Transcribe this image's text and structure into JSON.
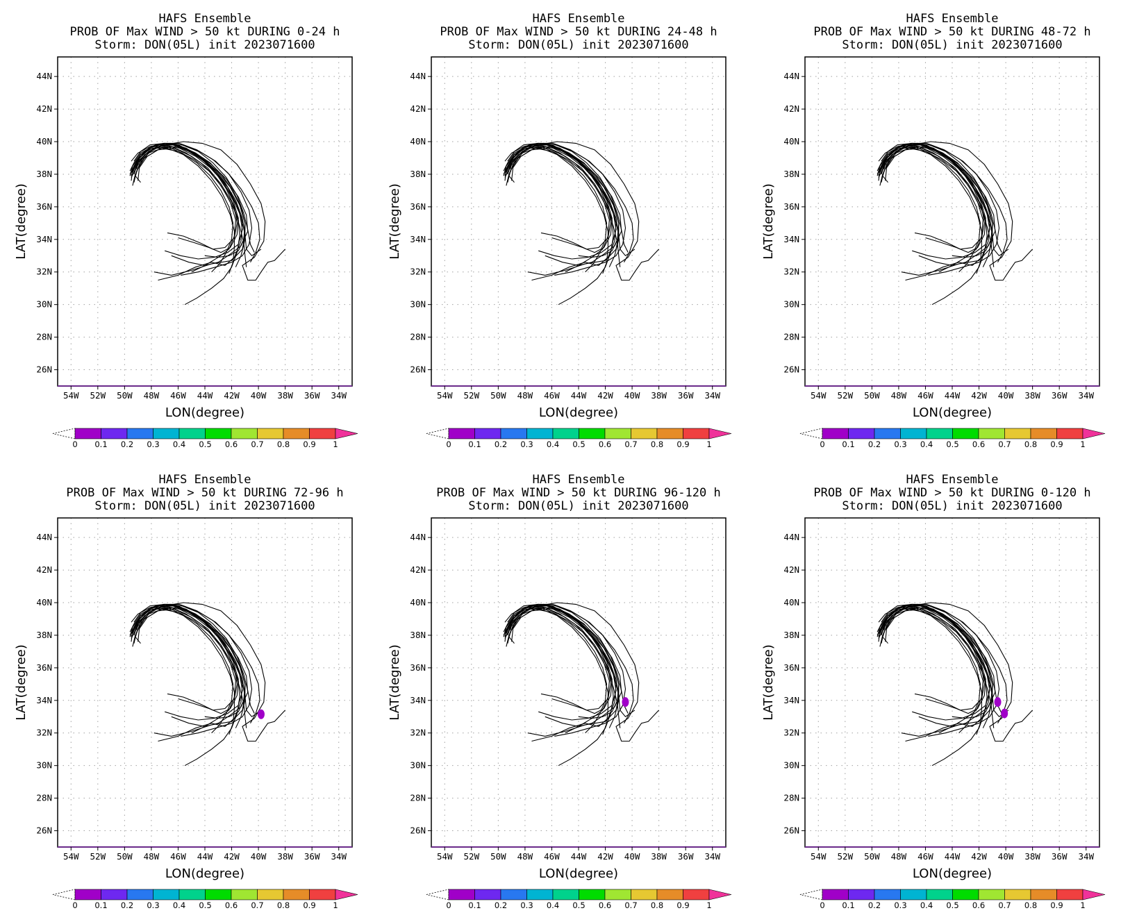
{
  "figure": {
    "line1": "HAFS Ensemble",
    "line3": "Storm: DON(05L) init 2023071600"
  },
  "chart_data": [
    {
      "type": "map",
      "title": "PROB OF Max WIND > 50 kt DURING  0-24 h",
      "prob_regions": []
    },
    {
      "type": "map",
      "title": "PROB OF Max WIND > 50 kt DURING 24-48 h",
      "prob_regions": []
    },
    {
      "type": "map",
      "title": "PROB OF Max WIND > 50 kt DURING 48-72 h",
      "prob_regions": []
    },
    {
      "type": "map",
      "title": "PROB OF Max WIND > 50 kt DURING 72-96 h",
      "prob_regions": [
        {
          "lon": -39.8,
          "lat": 33.15,
          "value": 0.05
        }
      ]
    },
    {
      "type": "map",
      "title": "PROB OF Max WIND > 50 kt DURING 96-120 h",
      "prob_regions": [
        {
          "lon": -40.5,
          "lat": 33.9,
          "value": 0.05
        }
      ]
    },
    {
      "type": "map",
      "title": "PROB OF Max WIND > 50 kt DURING 0-120 h",
      "prob_regions": [
        {
          "lon": -40.6,
          "lat": 33.9,
          "value": 0.05
        },
        {
          "lon": -40.1,
          "lat": 33.2,
          "value": 0.05
        }
      ]
    }
  ],
  "axes": {
    "xlabel": "LON(degree)",
    "ylabel": "LAT(degree)",
    "xlim": [
      -55,
      -33
    ],
    "ylim": [
      25,
      45.2
    ],
    "grid": true,
    "xticks": [
      {
        "v": -54,
        "t": "54W"
      },
      {
        "v": -52,
        "t": "52W"
      },
      {
        "v": -50,
        "t": "50W"
      },
      {
        "v": -48,
        "t": "48W"
      },
      {
        "v": -46,
        "t": "46W"
      },
      {
        "v": -44,
        "t": "44W"
      },
      {
        "v": -42,
        "t": "42W"
      },
      {
        "v": -40,
        "t": "40W"
      },
      {
        "v": -38,
        "t": "38W"
      },
      {
        "v": -36,
        "t": "36W"
      },
      {
        "v": -34,
        "t": "34W"
      }
    ],
    "yticks": [
      {
        "v": 26,
        "t": "26N"
      },
      {
        "v": 28,
        "t": "28N"
      },
      {
        "v": 30,
        "t": "30N"
      },
      {
        "v": 32,
        "t": "32N"
      },
      {
        "v": 34,
        "t": "34N"
      },
      {
        "v": 36,
        "t": "36N"
      },
      {
        "v": 38,
        "t": "38N"
      },
      {
        "v": 40,
        "t": "40N"
      },
      {
        "v": 42,
        "t": "42N"
      },
      {
        "v": 44,
        "t": "44N"
      }
    ]
  },
  "colorbar": {
    "labels": [
      "0",
      "0.1",
      "0.2",
      "0.3",
      "0.4",
      "0.5",
      "0.6",
      "0.7",
      "0.8",
      "0.9",
      "1"
    ],
    "colors": [
      "#a000c8",
      "#6e28f0",
      "#2878f0",
      "#00b4d2",
      "#00d28c",
      "#00dc00",
      "#a0e632",
      "#e6c832",
      "#e68c28",
      "#f04040"
    ],
    "under_color": "#ffffff",
    "over_color": "#f0329a"
  },
  "tracks": [
    [
      [
        -45.5,
        30.0
      ],
      [
        -44.6,
        30.4
      ],
      [
        -43.5,
        31.0
      ],
      [
        -42.6,
        31.6
      ],
      [
        -42.0,
        32.3
      ],
      [
        -41.6,
        33.2
      ],
      [
        -41.4,
        34.2
      ],
      [
        -41.5,
        35.2
      ],
      [
        -42.0,
        36.3
      ],
      [
        -42.8,
        37.4
      ],
      [
        -43.8,
        38.4
      ],
      [
        -45.0,
        39.1
      ],
      [
        -46.3,
        39.6
      ],
      [
        -47.5,
        39.5
      ],
      [
        -48.5,
        39.0
      ],
      [
        -49.1,
        38.2
      ],
      [
        -49.3,
        37.5
      ]
    ],
    [
      [
        -47.8,
        32.0
      ],
      [
        -46.5,
        31.8
      ],
      [
        -45.0,
        32.1
      ],
      [
        -43.5,
        32.5
      ],
      [
        -42.0,
        32.7
      ],
      [
        -41.2,
        33.4
      ],
      [
        -41.0,
        34.3
      ],
      [
        -41.3,
        35.4
      ],
      [
        -41.9,
        36.5
      ],
      [
        -42.7,
        37.6
      ],
      [
        -43.7,
        38.6
      ],
      [
        -44.9,
        39.3
      ],
      [
        -46.1,
        39.7
      ],
      [
        -47.3,
        39.6
      ],
      [
        -48.3,
        39.1
      ],
      [
        -48.9,
        38.4
      ],
      [
        -49.0,
        37.6
      ]
    ],
    [
      [
        -47.0,
        33.3
      ],
      [
        -45.8,
        33.0
      ],
      [
        -44.5,
        32.8
      ],
      [
        -43.3,
        32.9
      ],
      [
        -42.3,
        33.2
      ],
      [
        -41.5,
        33.7
      ],
      [
        -41.2,
        34.6
      ],
      [
        -41.4,
        35.6
      ],
      [
        -42.0,
        36.7
      ],
      [
        -42.9,
        37.8
      ],
      [
        -43.9,
        38.7
      ],
      [
        -45.1,
        39.4
      ],
      [
        -46.4,
        39.8
      ],
      [
        -47.6,
        39.7
      ],
      [
        -48.6,
        39.1
      ],
      [
        -49.2,
        38.3
      ],
      [
        -49.5,
        37.8
      ]
    ],
    [
      [
        -46.8,
        34.4
      ],
      [
        -45.6,
        34.2
      ],
      [
        -44.4,
        33.8
      ],
      [
        -43.4,
        33.4
      ],
      [
        -42.5,
        33.5
      ],
      [
        -41.8,
        34.1
      ],
      [
        -41.6,
        35.0
      ],
      [
        -41.8,
        36.0
      ],
      [
        -42.4,
        37.1
      ],
      [
        -43.2,
        38.1
      ],
      [
        -44.2,
        38.9
      ],
      [
        -45.4,
        39.5
      ],
      [
        -46.6,
        39.9
      ],
      [
        -47.8,
        39.6
      ],
      [
        -48.7,
        38.9
      ],
      [
        -49.2,
        38.0
      ],
      [
        -49.4,
        37.3
      ]
    ],
    [
      [
        -47.5,
        31.5
      ],
      [
        -46.0,
        31.8
      ],
      [
        -44.7,
        32.3
      ],
      [
        -43.5,
        32.6
      ],
      [
        -42.5,
        32.4
      ],
      [
        -41.8,
        32.9
      ],
      [
        -41.3,
        33.9
      ],
      [
        -41.2,
        35.0
      ],
      [
        -41.6,
        36.1
      ],
      [
        -42.3,
        37.2
      ],
      [
        -43.2,
        38.2
      ],
      [
        -44.3,
        39.0
      ],
      [
        -45.6,
        39.6
      ],
      [
        -46.8,
        39.9
      ],
      [
        -47.9,
        39.7
      ],
      [
        -48.8,
        39.2
      ],
      [
        -49.4,
        38.5
      ],
      [
        -49.6,
        37.9
      ]
    ],
    [
      [
        -46.5,
        33.0
      ],
      [
        -45.2,
        32.6
      ],
      [
        -44.0,
        32.4
      ],
      [
        -43.0,
        32.6
      ],
      [
        -42.1,
        33.1
      ],
      [
        -41.3,
        33.6
      ],
      [
        -40.8,
        34.5
      ],
      [
        -40.9,
        35.5
      ],
      [
        -41.5,
        36.6
      ],
      [
        -42.4,
        37.7
      ],
      [
        -43.5,
        38.6
      ],
      [
        -44.7,
        39.3
      ],
      [
        -46.0,
        39.8
      ],
      [
        -47.2,
        39.8
      ],
      [
        -48.2,
        39.4
      ],
      [
        -49.0,
        38.7
      ],
      [
        -49.3,
        38.0
      ]
    ],
    [
      [
        -45.0,
        32.0
      ],
      [
        -44.0,
        32.4
      ],
      [
        -43.0,
        32.9
      ],
      [
        -42.2,
        33.4
      ],
      [
        -41.8,
        34.2
      ],
      [
        -41.7,
        35.2
      ],
      [
        -42.1,
        36.3
      ],
      [
        -42.8,
        37.3
      ],
      [
        -43.7,
        38.2
      ],
      [
        -44.8,
        38.9
      ],
      [
        -46.0,
        39.4
      ],
      [
        -47.2,
        39.6
      ],
      [
        -48.2,
        39.3
      ],
      [
        -48.9,
        38.6
      ],
      [
        -49.2,
        37.9
      ],
      [
        -48.8,
        37.5
      ]
    ],
    [
      [
        -46.0,
        34.1
      ],
      [
        -44.8,
        33.8
      ],
      [
        -43.7,
        33.5
      ],
      [
        -42.8,
        33.2
      ],
      [
        -42.1,
        33.5
      ],
      [
        -41.6,
        34.3
      ],
      [
        -41.5,
        35.3
      ],
      [
        -41.9,
        36.4
      ],
      [
        -42.6,
        37.5
      ],
      [
        -43.6,
        38.4
      ],
      [
        -44.7,
        39.1
      ],
      [
        -45.9,
        39.6
      ],
      [
        -47.1,
        39.8
      ],
      [
        -48.2,
        39.5
      ],
      [
        -49.0,
        38.9
      ],
      [
        -49.4,
        38.2
      ]
    ],
    [
      [
        -39.8,
        33.4
      ],
      [
        -40.5,
        33.0
      ],
      [
        -40.9,
        33.4
      ],
      [
        -41.0,
        34.3
      ],
      [
        -41.2,
        35.3
      ],
      [
        -41.7,
        36.4
      ],
      [
        -42.5,
        37.5
      ],
      [
        -43.5,
        38.5
      ],
      [
        -44.6,
        39.2
      ],
      [
        -45.8,
        39.7
      ],
      [
        -47.0,
        39.9
      ],
      [
        -48.1,
        39.6
      ],
      [
        -48.9,
        39.0
      ],
      [
        -49.4,
        38.3
      ],
      [
        -49.5,
        37.6
      ]
    ],
    [
      [
        -40.3,
        33.2
      ],
      [
        -40.6,
        33.7
      ],
      [
        -40.8,
        34.6
      ],
      [
        -41.1,
        35.6
      ],
      [
        -41.6,
        36.7
      ],
      [
        -42.4,
        37.8
      ],
      [
        -43.4,
        38.7
      ],
      [
        -44.5,
        39.4
      ],
      [
        -45.7,
        39.8
      ],
      [
        -46.9,
        39.9
      ],
      [
        -48.0,
        39.7
      ],
      [
        -48.8,
        39.2
      ],
      [
        -49.3,
        38.5
      ],
      [
        -49.6,
        38.0
      ]
    ],
    [
      [
        -45.8,
        31.8
      ],
      [
        -44.5,
        32.0
      ],
      [
        -43.2,
        32.3
      ],
      [
        -42.0,
        32.6
      ],
      [
        -41.2,
        33.0
      ],
      [
        -40.7,
        33.7
      ],
      [
        -40.5,
        34.7
      ],
      [
        -40.7,
        35.8
      ],
      [
        -41.3,
        36.9
      ],
      [
        -42.2,
        38.0
      ],
      [
        -43.2,
        38.8
      ],
      [
        -44.4,
        39.4
      ],
      [
        -45.7,
        39.8
      ],
      [
        -47.0,
        39.9
      ],
      [
        -48.1,
        39.7
      ],
      [
        -49.0,
        39.3
      ],
      [
        -49.5,
        38.8
      ]
    ],
    [
      [
        -40.6,
        32.6
      ],
      [
        -40.2,
        33.2
      ],
      [
        -39.9,
        34.0
      ],
      [
        -40.0,
        35.0
      ],
      [
        -40.5,
        36.0
      ],
      [
        -41.3,
        37.1
      ],
      [
        -42.3,
        38.1
      ],
      [
        -43.4,
        38.9
      ],
      [
        -44.6,
        39.5
      ],
      [
        -45.9,
        39.9
      ],
      [
        -47.1,
        39.9
      ],
      [
        -48.2,
        39.6
      ],
      [
        -48.9,
        39.0
      ],
      [
        -49.1,
        38.3
      ]
    ],
    [
      [
        -40.9,
        32.3
      ],
      [
        -41.0,
        33.0
      ],
      [
        -41.1,
        33.8
      ],
      [
        -41.4,
        34.8
      ],
      [
        -41.8,
        35.8
      ],
      [
        -42.5,
        36.9
      ],
      [
        -43.3,
        37.9
      ],
      [
        -44.3,
        38.7
      ],
      [
        -45.4,
        39.3
      ],
      [
        -46.5,
        39.7
      ],
      [
        -47.6,
        39.6
      ],
      [
        -48.5,
        39.2
      ],
      [
        -49.1,
        38.6
      ],
      [
        -49.3,
        38.0
      ]
    ],
    [
      [
        -41.7,
        32.3
      ],
      [
        -41.3,
        33.0
      ],
      [
        -41.0,
        34.0
      ],
      [
        -41.0,
        35.0
      ],
      [
        -41.4,
        36.1
      ],
      [
        -42.1,
        37.2
      ],
      [
        -43.1,
        38.2
      ],
      [
        -44.2,
        39.0
      ],
      [
        -45.4,
        39.6
      ],
      [
        -46.6,
        39.9
      ],
      [
        -47.7,
        39.8
      ],
      [
        -48.6,
        39.3
      ],
      [
        -49.2,
        38.6
      ],
      [
        -49.5,
        38.1
      ]
    ],
    [
      [
        -42.2,
        31.9
      ],
      [
        -41.9,
        32.6
      ],
      [
        -41.8,
        33.5
      ],
      [
        -41.8,
        34.5
      ],
      [
        -42.1,
        35.5
      ],
      [
        -42.7,
        36.6
      ],
      [
        -43.5,
        37.6
      ],
      [
        -44.5,
        38.5
      ],
      [
        -45.6,
        39.2
      ],
      [
        -46.8,
        39.6
      ],
      [
        -47.9,
        39.6
      ],
      [
        -48.8,
        39.2
      ],
      [
        -49.3,
        38.5
      ],
      [
        -49.5,
        37.9
      ]
    ],
    [
      [
        -38.0,
        33.4
      ],
      [
        -38.8,
        32.7
      ],
      [
        -39.3,
        32.6
      ],
      [
        -39.8,
        32.0
      ],
      [
        -40.2,
        31.5
      ],
      [
        -40.8,
        31.5
      ],
      [
        -41.2,
        32.4
      ],
      [
        -40.3,
        32.9
      ],
      [
        -39.6,
        33.9
      ],
      [
        -39.5,
        35.1
      ],
      [
        -39.8,
        36.2
      ],
      [
        -40.6,
        37.4
      ],
      [
        -41.6,
        38.6
      ],
      [
        -42.8,
        39.5
      ],
      [
        -44.2,
        39.9
      ],
      [
        -45.6,
        40.0
      ],
      [
        -47.0,
        39.8
      ],
      [
        -48.2,
        39.4
      ],
      [
        -49.0,
        38.8
      ],
      [
        -49.4,
        38.1
      ]
    ],
    [
      [
        -44.0,
        33.0
      ],
      [
        -43.0,
        32.9
      ],
      [
        -42.2,
        33.0
      ],
      [
        -41.5,
        33.3
      ],
      [
        -41.1,
        34.0
      ],
      [
        -41.0,
        35.0
      ],
      [
        -41.3,
        36.0
      ],
      [
        -41.9,
        37.0
      ],
      [
        -42.7,
        37.9
      ],
      [
        -43.6,
        38.7
      ],
      [
        -44.7,
        39.3
      ],
      [
        -45.8,
        39.7
      ],
      [
        -47.0,
        39.9
      ],
      [
        -48.1,
        39.8
      ],
      [
        -48.8,
        39.4
      ],
      [
        -49.3,
        38.8
      ]
    ],
    [
      [
        -43.5,
        32.0
      ],
      [
        -42.9,
        32.5
      ],
      [
        -42.4,
        33.2
      ],
      [
        -42.0,
        34.0
      ],
      [
        -41.9,
        35.0
      ],
      [
        -42.2,
        36.0
      ],
      [
        -42.8,
        37.0
      ],
      [
        -43.6,
        37.9
      ],
      [
        -44.6,
        38.7
      ],
      [
        -45.7,
        39.3
      ],
      [
        -46.8,
        39.7
      ],
      [
        -47.9,
        39.7
      ],
      [
        -48.8,
        39.3
      ],
      [
        -49.3,
        38.7
      ],
      [
        -49.6,
        38.2
      ]
    ]
  ]
}
